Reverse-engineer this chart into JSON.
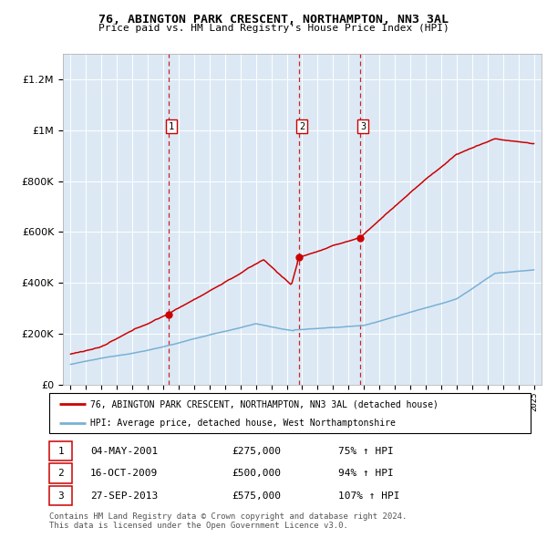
{
  "title": "76, ABINGTON PARK CRESCENT, NORTHAMPTON, NN3 3AL",
  "subtitle": "Price paid vs. HM Land Registry's House Price Index (HPI)",
  "bg_color": "#dce9f5",
  "red_color": "#cc0000",
  "blue_color": "#7ab0d4",
  "ylim": [
    0,
    1300000
  ],
  "yticks": [
    0,
    200000,
    400000,
    600000,
    800000,
    1000000,
    1200000
  ],
  "trans_years": [
    2001.35,
    2009.79,
    2013.74
  ],
  "trans_prices": [
    275000,
    500000,
    575000
  ],
  "trans_labels": [
    "1",
    "2",
    "3"
  ],
  "legend_line1": "76, ABINGTON PARK CRESCENT, NORTHAMPTON, NN3 3AL (detached house)",
  "legend_line2": "HPI: Average price, detached house, West Northamptonshire",
  "table_rows": [
    [
      "1",
      "04-MAY-2001",
      "£275,000",
      "75% ↑ HPI"
    ],
    [
      "2",
      "16-OCT-2009",
      "£500,000",
      "94% ↑ HPI"
    ],
    [
      "3",
      "27-SEP-2013",
      "£575,000",
      "107% ↑ HPI"
    ]
  ],
  "footer": "Contains HM Land Registry data © Crown copyright and database right 2024.\nThis data is licensed under the Open Government Licence v3.0.",
  "xmin": 1994.5,
  "xmax": 2025.5
}
